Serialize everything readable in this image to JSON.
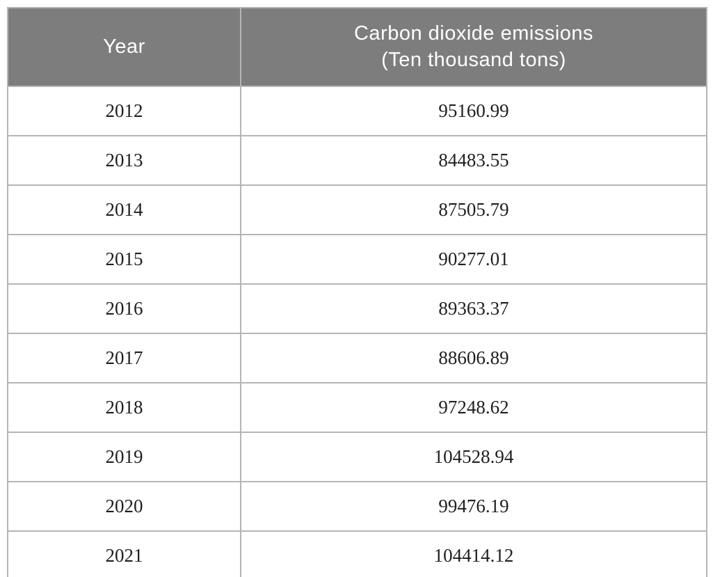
{
  "table": {
    "headers": {
      "year": "Year",
      "emissions": "Carbon dioxide emissions\n(Ten thousand tons)"
    },
    "rows": [
      [
        "2012",
        "95160.99"
      ],
      [
        "2013",
        "84483.55"
      ],
      [
        "2014",
        "87505.79"
      ],
      [
        "2015",
        "90277.01"
      ],
      [
        "2016",
        "89363.37"
      ],
      [
        "2017",
        "88606.89"
      ],
      [
        "2018",
        "97248.62"
      ],
      [
        "2019",
        "104528.94"
      ],
      [
        "2020",
        "99476.19"
      ],
      [
        "2021",
        "104414.12"
      ]
    ]
  },
  "chart_data": {
    "type": "table",
    "columns": [
      "Year",
      "Carbon dioxide emissions (Ten thousand tons)"
    ],
    "rows": [
      [
        2012,
        95160.99
      ],
      [
        2013,
        84483.55
      ],
      [
        2014,
        87505.79
      ],
      [
        2015,
        90277.01
      ],
      [
        2016,
        89363.37
      ],
      [
        2017,
        88606.89
      ],
      [
        2018,
        97248.62
      ],
      [
        2019,
        104528.94
      ],
      [
        2020,
        99476.19
      ],
      [
        2021,
        104414.12
      ]
    ],
    "x": [
      2012,
      2013,
      2014,
      2015,
      2016,
      2017,
      2018,
      2019,
      2020,
      2021
    ],
    "series": [
      {
        "name": "Carbon dioxide emissions (Ten thousand tons)",
        "values": [
          95160.99,
          84483.55,
          87505.79,
          90277.01,
          89363.37,
          88606.89,
          97248.62,
          104528.94,
          99476.19,
          104414.12
        ]
      }
    ]
  },
  "colors": {
    "header_bg": "#7d7d7d",
    "header_text": "#ffffff",
    "body_text": "#1f1f1f",
    "border": "#b5b5b5",
    "row_bg": "#ffffff"
  }
}
